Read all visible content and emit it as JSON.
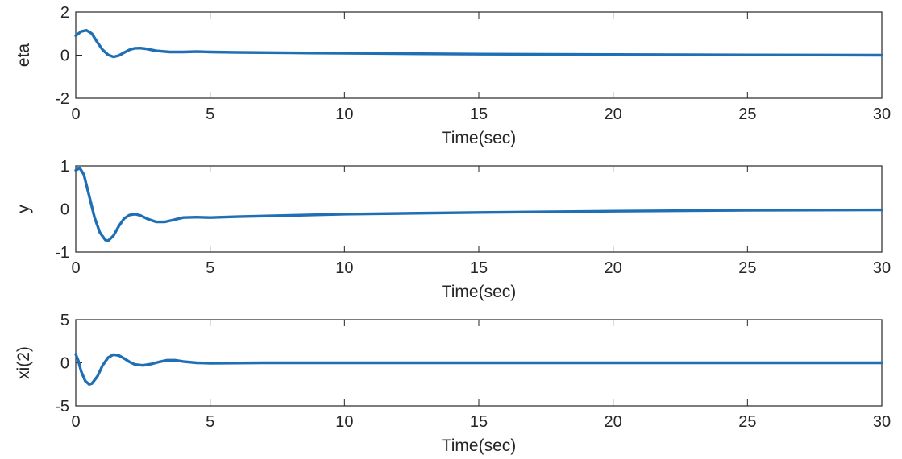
{
  "chart_data": [
    {
      "type": "line",
      "xlabel": "Time(sec)",
      "ylabel": "eta",
      "xlim": [
        0,
        30
      ],
      "ylim": [
        -2,
        2
      ],
      "xticks": [
        0,
        5,
        10,
        15,
        20,
        25,
        30
      ],
      "yticks": [
        -2,
        0,
        2
      ],
      "grid": false,
      "series": [
        {
          "color": "#1f6fb5",
          "x": [
            0,
            0.2,
            0.4,
            0.6,
            0.8,
            1.0,
            1.2,
            1.4,
            1.6,
            1.8,
            2.0,
            2.2,
            2.4,
            2.6,
            2.8,
            3.0,
            3.5,
            4.0,
            4.5,
            5.0,
            6.0,
            8.0,
            10.0,
            15.0,
            20.0,
            25.0,
            30.0
          ],
          "y": [
            0.9,
            1.1,
            1.15,
            1.0,
            0.6,
            0.25,
            0.02,
            -0.08,
            -0.02,
            0.12,
            0.25,
            0.32,
            0.33,
            0.3,
            0.25,
            0.2,
            0.15,
            0.15,
            0.17,
            0.15,
            0.13,
            0.11,
            0.09,
            0.05,
            0.03,
            0.01,
            0.0
          ]
        }
      ]
    },
    {
      "type": "line",
      "xlabel": "Time(sec)",
      "ylabel": "y",
      "xlim": [
        0,
        30
      ],
      "ylim": [
        -1,
        1
      ],
      "xticks": [
        0,
        5,
        10,
        15,
        20,
        25,
        30
      ],
      "yticks": [
        -1,
        0,
        1
      ],
      "grid": false,
      "series": [
        {
          "color": "#1f6fb5",
          "x": [
            0,
            0.15,
            0.3,
            0.5,
            0.7,
            0.9,
            1.1,
            1.2,
            1.4,
            1.6,
            1.8,
            2.0,
            2.2,
            2.4,
            2.7,
            3.0,
            3.3,
            3.6,
            4.0,
            4.5,
            5.0,
            6.0,
            8.0,
            10.0,
            15.0,
            20.0,
            25.0,
            30.0
          ],
          "y": [
            0.9,
            0.95,
            0.8,
            0.3,
            -0.2,
            -0.55,
            -0.72,
            -0.74,
            -0.62,
            -0.4,
            -0.22,
            -0.14,
            -0.12,
            -0.15,
            -0.24,
            -0.3,
            -0.3,
            -0.26,
            -0.2,
            -0.19,
            -0.2,
            -0.18,
            -0.15,
            -0.12,
            -0.08,
            -0.05,
            -0.03,
            -0.02
          ]
        }
      ]
    },
    {
      "type": "line",
      "xlabel": "Time(sec)",
      "ylabel": "xi(2)",
      "xlim": [
        0,
        30
      ],
      "ylim": [
        -5,
        5
      ],
      "xticks": [
        0,
        5,
        10,
        15,
        20,
        25,
        30
      ],
      "yticks": [
        -5,
        0,
        5
      ],
      "grid": false,
      "series": [
        {
          "color": "#1f6fb5",
          "x": [
            0,
            0.1,
            0.2,
            0.35,
            0.5,
            0.6,
            0.8,
            1.0,
            1.2,
            1.4,
            1.6,
            1.8,
            2.0,
            2.2,
            2.5,
            2.8,
            3.1,
            3.4,
            3.7,
            4.0,
            4.5,
            5.0,
            7.0,
            10.0,
            15.0,
            20.0,
            25.0,
            30.0
          ],
          "y": [
            1.0,
            0.2,
            -1.0,
            -2.1,
            -2.5,
            -2.4,
            -1.6,
            -0.3,
            0.6,
            0.95,
            0.85,
            0.5,
            0.1,
            -0.2,
            -0.3,
            -0.15,
            0.1,
            0.3,
            0.3,
            0.15,
            0.0,
            -0.05,
            0.0,
            0.0,
            0.0,
            0.0,
            0.0,
            0.0
          ]
        }
      ]
    }
  ]
}
